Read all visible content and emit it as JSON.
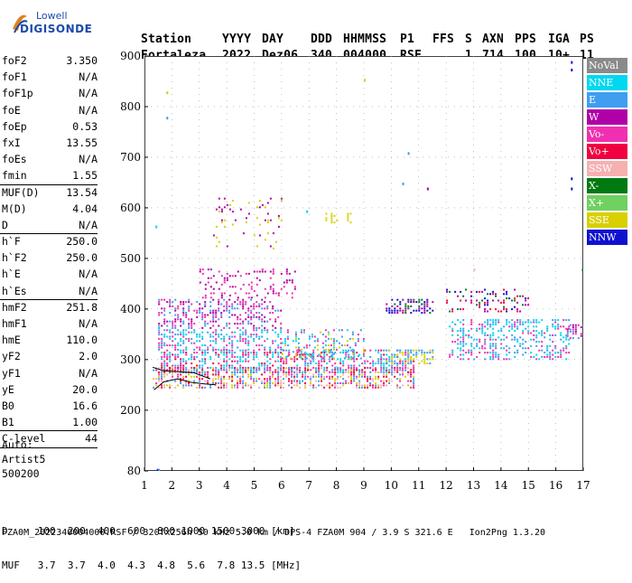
{
  "logo": {
    "top": "Lowell",
    "bottom": "DIGISONDE"
  },
  "header": {
    "labels": [
      "Station",
      "YYYY",
      "DAY",
      "DDD",
      "HHMMSS",
      "P1",
      "FFS",
      "S",
      "AXN",
      "PPS",
      "IGA",
      "PS"
    ],
    "values": [
      "Fortaleza",
      "2022",
      "Dez06",
      "340",
      "004000",
      "RSF",
      "",
      "1",
      "714",
      "100",
      "10+",
      "11"
    ]
  },
  "params": [
    {
      "label": "foF2",
      "value": "3.350"
    },
    {
      "label": "foF1",
      "value": "N/A"
    },
    {
      "label": "foF1p",
      "value": "N/A"
    },
    {
      "label": "foE",
      "value": "N/A"
    },
    {
      "label": "foEp",
      "value": "0.53"
    },
    {
      "label": "fxI",
      "value": "13.55"
    },
    {
      "label": "foEs",
      "value": "N/A"
    },
    {
      "label": "fmin",
      "value": "1.55"
    },
    {
      "label": "MUF(D)",
      "value": "13.54"
    },
    {
      "label": "M(D)",
      "value": "4.04"
    },
    {
      "label": "D",
      "value": "N/A"
    },
    {
      "label": "h`F",
      "value": "250.0"
    },
    {
      "label": "h`F2",
      "value": "250.0"
    },
    {
      "label": "h`E",
      "value": "N/A"
    },
    {
      "label": "h`Es",
      "value": "N/A"
    },
    {
      "label": "hmF2",
      "value": "251.8"
    },
    {
      "label": "hmF1",
      "value": "N/A"
    },
    {
      "label": "hmE",
      "value": "110.0"
    },
    {
      "label": "yF2",
      "value": "2.0"
    },
    {
      "label": "yF1",
      "value": "N/A"
    },
    {
      "label": "yE",
      "value": "20.0"
    },
    {
      "label": "B0",
      "value": "16.6"
    },
    {
      "label": "B1",
      "value": "1.00"
    },
    {
      "label": "C-level",
      "value": "44"
    }
  ],
  "auto": {
    "line1": "Auto:",
    "line2": "Artist5",
    "line3": "500200"
  },
  "legend": [
    {
      "label": "NoVal",
      "color": "#8a8a8a"
    },
    {
      "label": "NNE",
      "color": "#00d7f0"
    },
    {
      "label": "E",
      "color": "#3f9ef0"
    },
    {
      "label": "W",
      "color": "#b000a8"
    },
    {
      "label": "Vo-",
      "color": "#f030b0"
    },
    {
      "label": "Vo+",
      "color": "#f00040"
    },
    {
      "label": "SSW",
      "color": "#f6b0b0"
    },
    {
      "label": "X-",
      "color": "#007a10"
    },
    {
      "label": "X+",
      "color": "#70d060"
    },
    {
      "label": "SSE",
      "color": "#d8d000"
    },
    {
      "label": "NNW",
      "color": "#1010d0"
    }
  ],
  "chart_data": {
    "type": "scatter",
    "title": "",
    "xlabel": "",
    "ylabel": "",
    "xlim": [
      1,
      17
    ],
    "ylim": [
      80,
      900
    ],
    "x_ticks": [
      1,
      2,
      3,
      4,
      5,
      6,
      7,
      8,
      9,
      10,
      11,
      12,
      13,
      14,
      15,
      16,
      17
    ],
    "y_ticks": [
      80,
      200,
      300,
      400,
      500,
      600,
      700,
      800,
      900
    ],
    "clusters": [
      {
        "x": [
          1.3,
          10.8
        ],
        "y": [
          245,
          285
        ],
        "density": 0.55,
        "colors": [
          "#f00040",
          "#f030b0",
          "#f6b0b0",
          "#3f9ef0",
          "#d8d000"
        ]
      },
      {
        "x": [
          1.6,
          10.8
        ],
        "y": [
          275,
          320
        ],
        "density": 0.5,
        "colors": [
          "#f00040",
          "#3f9ef0",
          "#00d7f0",
          "#f030b0"
        ]
      },
      {
        "x": [
          1.5,
          6.0
        ],
        "y": [
          320,
          360
        ],
        "density": 0.4,
        "colors": [
          "#3f9ef0",
          "#00d7f0",
          "#f030b0"
        ]
      },
      {
        "x": [
          1.5,
          6.0
        ],
        "y": [
          360,
          420
        ],
        "density": 0.35,
        "colors": [
          "#b000a8",
          "#f030b0",
          "#3f9ef0"
        ]
      },
      {
        "x": [
          3.0,
          6.5
        ],
        "y": [
          420,
          480
        ],
        "density": 0.18,
        "colors": [
          "#b000a8",
          "#f030b0"
        ]
      },
      {
        "x": [
          6.0,
          9.0
        ],
        "y": [
          300,
          360
        ],
        "density": 0.3,
        "colors": [
          "#d8d000",
          "#3f9ef0",
          "#00d7f0",
          "#f030b0"
        ]
      },
      {
        "x": [
          9.8,
          11.5
        ],
        "y": [
          290,
          320
        ],
        "density": 0.55,
        "colors": [
          "#d8d000",
          "#3f9ef0"
        ]
      },
      {
        "x": [
          9.8,
          11.5
        ],
        "y": [
          390,
          420
        ],
        "density": 0.45,
        "colors": [
          "#1010d0",
          "#007a10",
          "#b000a8"
        ]
      },
      {
        "x": [
          12.1,
          16.5
        ],
        "y": [
          300,
          380
        ],
        "density": 0.35,
        "colors": [
          "#3f9ef0",
          "#00d7f0",
          "#f030b0"
        ]
      },
      {
        "x": [
          12.0,
          15.0
        ],
        "y": [
          395,
          440
        ],
        "density": 0.3,
        "colors": [
          "#007a10",
          "#1010d0",
          "#b000a8",
          "#f00040"
        ]
      },
      {
        "x": [
          3.5,
          6.0
        ],
        "y": [
          520,
          620
        ],
        "density": 0.08,
        "colors": [
          "#d8d000",
          "#b000a8"
        ]
      },
      {
        "x": [
          7.5,
          8.5
        ],
        "y": [
          570,
          590
        ],
        "density": 0.2,
        "colors": [
          "#d8d000"
        ]
      },
      {
        "x": [
          16.4,
          17.0
        ],
        "y": [
          340,
          370
        ],
        "density": 0.5,
        "colors": [
          "#b000a8",
          "#f030b0",
          "#3f9ef0"
        ]
      }
    ],
    "trace": {
      "x": [
        1.35,
        1.7,
        2.2,
        2.7,
        3.2,
        3.6
      ],
      "y": [
        240,
        256,
        262,
        255,
        252,
        250
      ]
    },
    "trace2": {
      "x": [
        1.3,
        1.7,
        2.2,
        2.8,
        3.4
      ],
      "y": [
        285,
        278,
        276,
        274,
        262
      ]
    },
    "isolated": [
      {
        "x": 1.45,
        "y": 84,
        "color": "#1010d0"
      },
      {
        "x": 1.5,
        "y": 84,
        "color": "#3f9ef0"
      },
      {
        "x": 1.4,
        "y": 565,
        "color": "#00d7f0"
      },
      {
        "x": 1.8,
        "y": 780,
        "color": "#3f9ef0"
      },
      {
        "x": 1.8,
        "y": 830,
        "color": "#d8d000"
      },
      {
        "x": 9.0,
        "y": 855,
        "color": "#d8d000"
      },
      {
        "x": 10.4,
        "y": 650,
        "color": "#3f9ef0"
      },
      {
        "x": 10.6,
        "y": 710,
        "color": "#3f9ef0"
      },
      {
        "x": 11.3,
        "y": 640,
        "color": "#b000a8"
      },
      {
        "x": 16.55,
        "y": 640,
        "color": "#1010d0"
      },
      {
        "x": 16.55,
        "y": 660,
        "color": "#1010d0"
      },
      {
        "x": 16.55,
        "y": 875,
        "color": "#1010d0"
      },
      {
        "x": 16.55,
        "y": 890,
        "color": "#1010d0"
      },
      {
        "x": 6.9,
        "y": 595,
        "color": "#00d7f0"
      },
      {
        "x": 16.95,
        "y": 480,
        "color": "#007a10"
      },
      {
        "x": 13.0,
        "y": 480,
        "color": "#f6b0b0"
      }
    ]
  },
  "footer": {
    "line1": "D     100  200  400  600  800 1000 1500 3000 [km]",
    "line2": "MUF   3.7  3.7  4.0  4.3  4.8  5.6  7.8 13.5 [MHz]",
    "line3": "FZA0M_2022340004000.RSF / 320fx256h 50 kHz 5.0 km / DPS-4 FZA0M 904 / 3.9 S 321.6 E   Ion2Png 1.3.20"
  }
}
